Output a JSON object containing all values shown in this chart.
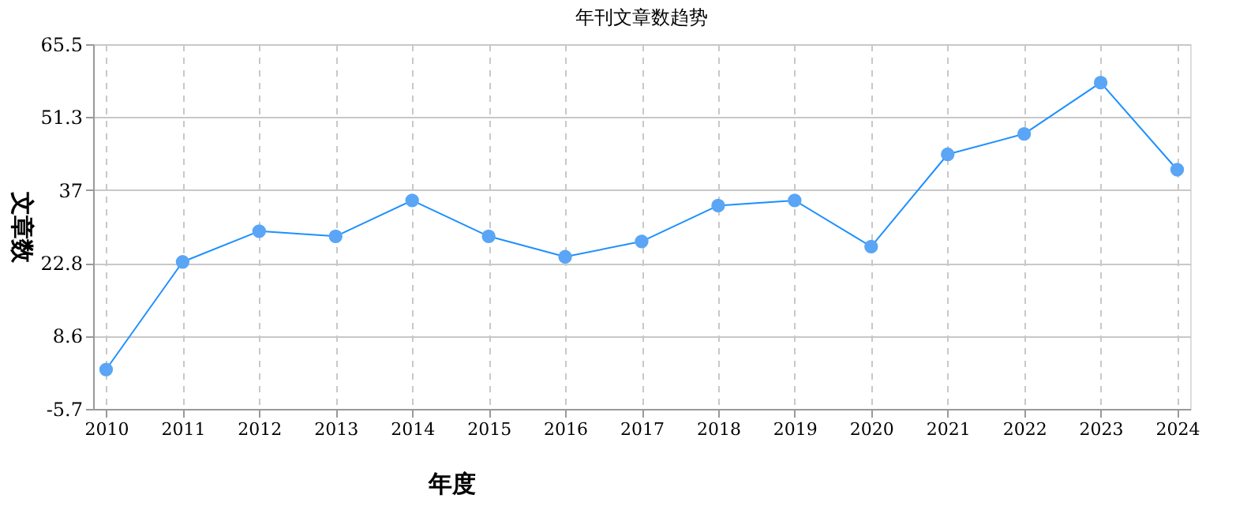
{
  "chart_data": {
    "type": "line",
    "title": "年刊文章数趋势",
    "xlabel": "年度",
    "ylabel": "文章数",
    "categories": [
      "2010",
      "2011",
      "2012",
      "2013",
      "2014",
      "2015",
      "2016",
      "2017",
      "2018",
      "2019",
      "2020",
      "2021",
      "2022",
      "2023",
      "2024"
    ],
    "series": [
      {
        "color": "#1e90ff",
        "values": [
          2,
          23,
          29,
          28,
          35,
          28,
          24,
          27,
          34,
          35,
          26,
          44,
          48,
          58,
          41
        ]
      }
    ],
    "ylim": [
      -5.7,
      65.5
    ],
    "yticks": [
      -5.7,
      8.6,
      22.8,
      37,
      51.3,
      65.5
    ],
    "grid": true,
    "marker": "circle",
    "line_style": "solid"
  }
}
